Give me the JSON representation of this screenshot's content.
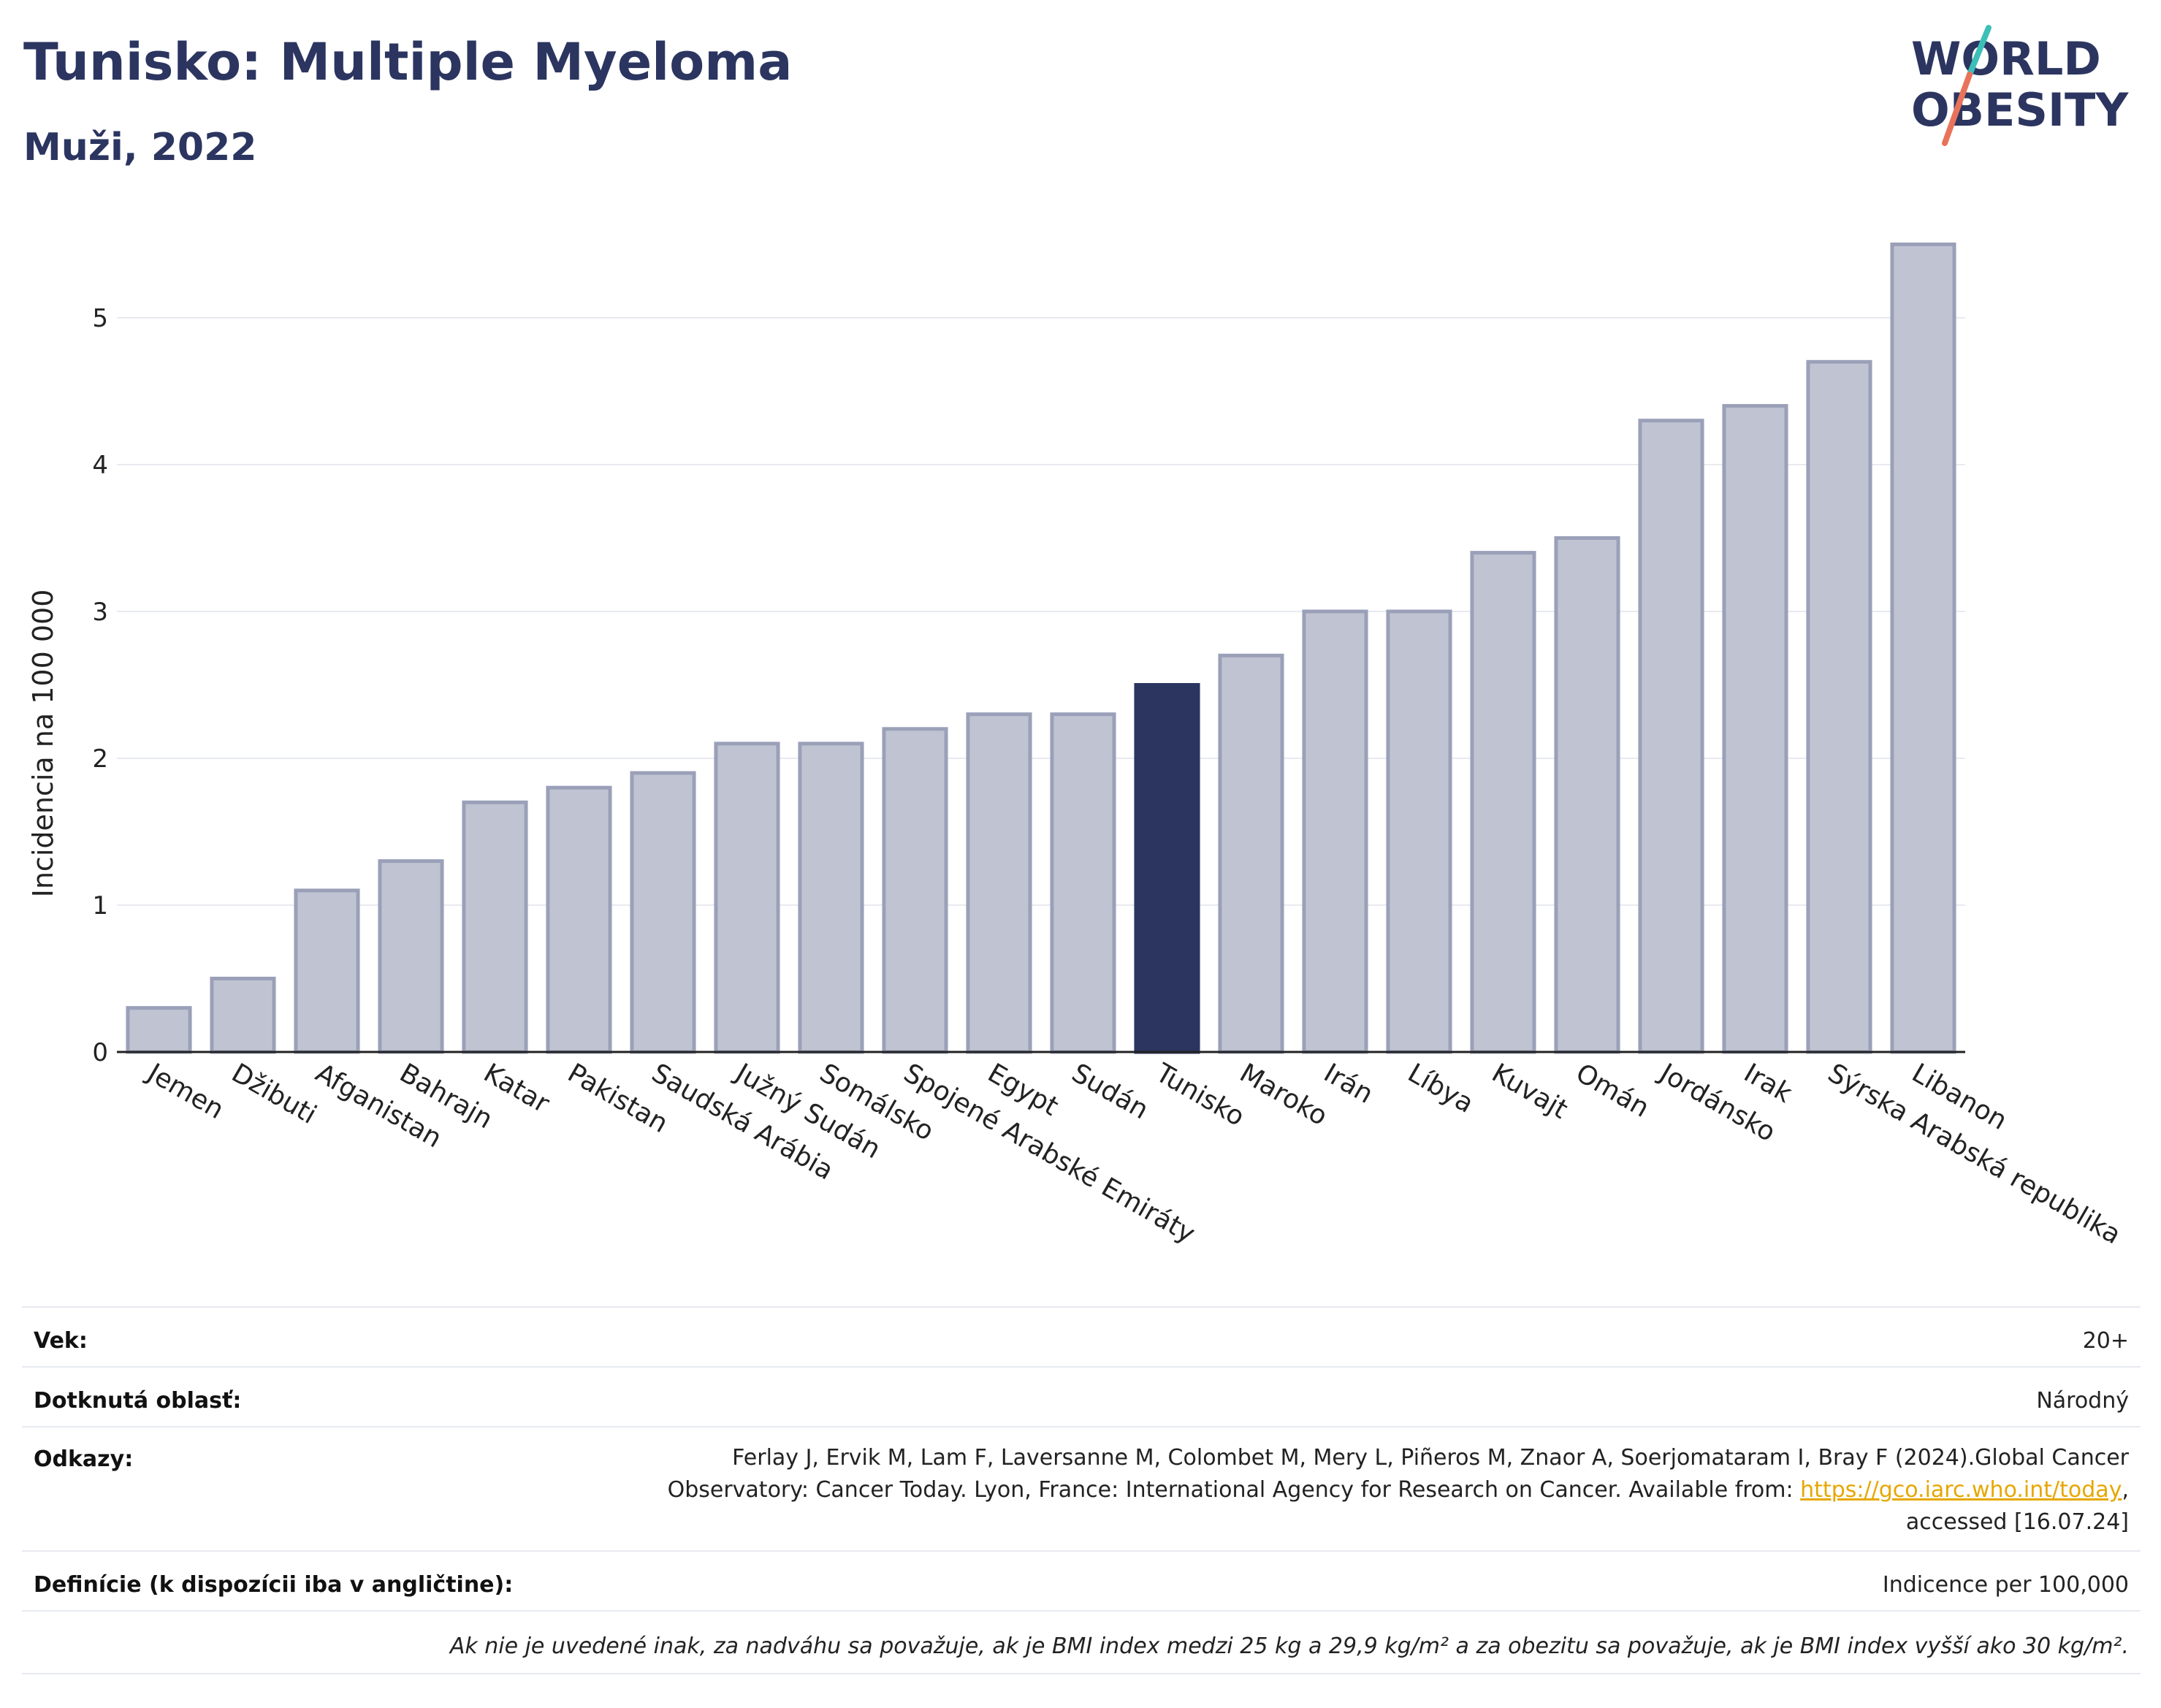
{
  "header": {
    "title": "Tunisko: Multiple Myeloma",
    "subtitle": "Muži, 2022"
  },
  "logo": {
    "line1": "WORLD",
    "line2": "OBESITY"
  },
  "chart_data": {
    "type": "bar",
    "ylabel": "Incidencia na 100 000",
    "xlabel": "",
    "ylim": [
      0,
      5.6
    ],
    "yticks": [
      0,
      1,
      2,
      3,
      4,
      5
    ],
    "grid": true,
    "highlight": "Tunisko",
    "colors": {
      "bar": "#c0c4d2",
      "bar_edge": "#9aa0b8",
      "highlight": "#2b3560"
    },
    "categories": [
      "Jemen",
      "Džibuti",
      "Afganistan",
      "Bahrajn",
      "Katar",
      "Pakistan",
      "Saudská Arábia",
      "Južný Sudán",
      "Somálsko",
      "Spojené Arabské Emiráty",
      "Egypt",
      "Sudán",
      "Tunisko",
      "Maroko",
      "Irán",
      "Líbya",
      "Kuvajt",
      "Omán",
      "Jordánsko",
      "Irak",
      "Sýrska Arabská republika",
      "Libanon"
    ],
    "values": [
      0.3,
      0.5,
      1.1,
      1.3,
      1.7,
      1.8,
      1.9,
      2.1,
      2.1,
      2.2,
      2.3,
      2.3,
      2.5,
      2.7,
      3.0,
      3.0,
      3.4,
      3.5,
      4.3,
      4.4,
      4.7,
      5.5
    ]
  },
  "info": {
    "age": {
      "label": "Vek:",
      "value": "20+"
    },
    "area": {
      "label": "Dotknutá oblasť:",
      "value": "Národný"
    },
    "refs": {
      "label": "Odkazy:",
      "text1": "Ferlay J, Ervik M, Lam F, Laversanne M, Colombet M, Mery L, Piñeros M, Znaor A, Soerjomataram I, Bray F (2024).Global Cancer Observatory: Cancer Today. Lyon, France: International Agency for Research on Cancer. Available from: ",
      "link": "https://gco.iarc.who.int/today",
      "text2": ", accessed [16.07.24]"
    },
    "definitions": {
      "label": "Definície (k dispozícii iba v angličtine):",
      "value": "Indicence per 100,000"
    },
    "note": "Ak nie je uvedené inak, za nadváhu sa považuje, ak je BMI index medzi 25 kg a 29,9 kg/m² a za obezitu sa považuje, ak je BMI index vyšší ako 30 kg/m²."
  }
}
